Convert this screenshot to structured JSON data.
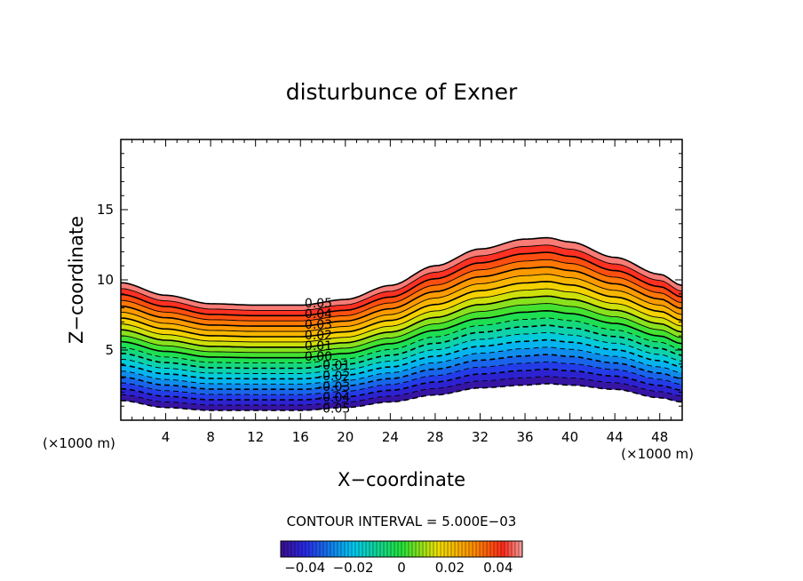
{
  "chart_data": {
    "type": "heatmap",
    "title": "disturbunce of Exner",
    "xlabel": "X−coordinate",
    "ylabel": "Z−coordinate",
    "x_unit_left": "(×1000 m)",
    "x_unit_right": "(×1000 m)",
    "xlim": [
      0,
      50
    ],
    "ylim": [
      0,
      20
    ],
    "x_ticks": [
      4,
      8,
      12,
      16,
      20,
      24,
      28,
      32,
      36,
      40,
      44,
      48
    ],
    "x_tick_labels": [
      "4",
      "8",
      "12",
      "16",
      "20",
      "24",
      "28",
      "32",
      "36",
      "40",
      "44",
      "48"
    ],
    "y_ticks": [
      5,
      10,
      15
    ],
    "y_tick_labels": [
      "5",
      "10",
      "15"
    ],
    "value_range": [
      -0.05,
      0.05
    ],
    "contour_interval_text": "CONTOUR INTERVAL = 5.000E−03",
    "contour_levels": [
      -0.05,
      -0.045,
      -0.04,
      -0.035,
      -0.03,
      -0.025,
      -0.02,
      -0.015,
      -0.01,
      -0.005,
      0,
      0.005,
      0.01,
      0.015,
      0.02,
      0.025,
      0.03,
      0.035,
      0.04,
      0.045,
      0.05
    ],
    "contour_labels": [
      {
        "text": "0.05",
        "level": 0.05
      },
      {
        "text": "0.04",
        "level": 0.04
      },
      {
        "text": "0.03",
        "level": 0.03
      },
      {
        "text": "0.02",
        "level": 0.02
      },
      {
        "text": "0.01",
        "level": 0.01
      },
      {
        "text": "0.00",
        "level": 0
      },
      {
        "text": "-0.01",
        "level": -0.01
      },
      {
        "text": "-0.02",
        "level": -0.02
      },
      {
        "text": "-0.03",
        "level": -0.03
      },
      {
        "text": "-0.04",
        "level": -0.04
      },
      {
        "text": "-0.05",
        "level": -0.05
      }
    ],
    "band_profile": {
      "top_height": [
        [
          0,
          9.8
        ],
        [
          4,
          8.9
        ],
        [
          8,
          8.3
        ],
        [
          12,
          8.2
        ],
        [
          16,
          8.2
        ],
        [
          20,
          8.6
        ],
        [
          24,
          9.6
        ],
        [
          28,
          11.0
        ],
        [
          32,
          12.2
        ],
        [
          36,
          12.9
        ],
        [
          38,
          13.0
        ],
        [
          40,
          12.7
        ],
        [
          44,
          11.6
        ],
        [
          48,
          10.4
        ],
        [
          50,
          9.6
        ]
      ],
      "bottom_height": [
        [
          0,
          1.4
        ],
        [
          4,
          0.9
        ],
        [
          8,
          0.7
        ],
        [
          12,
          0.7
        ],
        [
          16,
          0.7
        ],
        [
          20,
          0.9
        ],
        [
          24,
          1.3
        ],
        [
          28,
          1.8
        ],
        [
          32,
          2.3
        ],
        [
          36,
          2.5
        ],
        [
          38,
          2.6
        ],
        [
          40,
          2.5
        ],
        [
          44,
          2.2
        ],
        [
          48,
          1.6
        ],
        [
          50,
          1.3
        ]
      ]
    },
    "colorbar": {
      "ticks": [
        -0.04,
        -0.02,
        0,
        0.02,
        0.04
      ],
      "tick_labels": [
        "−0.04",
        "−0.02",
        "0",
        "0.02",
        "0.04"
      ]
    },
    "colors": {
      "low": "#3a0e8c",
      "mid_low": "#00c8f0",
      "mid": "#22e23a",
      "mid_high": "#f0e000",
      "high": "#ff2a1a",
      "top": "#f5a0a0"
    },
    "grid": false,
    "legend": "bottom-center colorbar"
  }
}
